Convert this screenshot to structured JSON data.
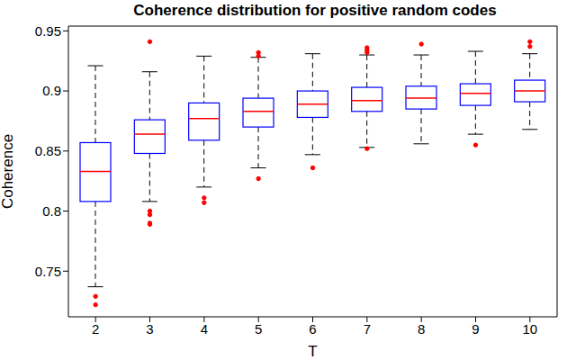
{
  "chart_data": {
    "type": "box",
    "title": "Coherence distribution for positive random codes",
    "x_label": "T",
    "y_label": "Coherence",
    "x": [
      2,
      3,
      4,
      5,
      6,
      7,
      8,
      9,
      10
    ],
    "xlim": [
      1.5,
      10.5
    ],
    "xticks": [
      2,
      3,
      4,
      5,
      6,
      7,
      8,
      9,
      10
    ],
    "ylim": [
      0.712,
      0.954
    ],
    "yticks": [
      0.75,
      0.8,
      0.85,
      0.9,
      0.95
    ],
    "grid": false,
    "color": "#0000ff",
    "whisker_low": [
      0.737,
      0.808,
      0.82,
      0.836,
      0.847,
      0.853,
      0.856,
      0.864,
      0.868
    ],
    "q1": [
      0.808,
      0.848,
      0.859,
      0.87,
      0.878,
      0.883,
      0.885,
      0.888,
      0.891
    ],
    "q3": [
      0.857,
      0.876,
      0.89,
      0.894,
      0.9,
      0.903,
      0.904,
      0.906,
      0.909
    ],
    "whisker_high": [
      0.921,
      0.916,
      0.929,
      0.928,
      0.931,
      0.93,
      0.93,
      0.933,
      0.931
    ],
    "median": {
      "values": [
        0.833,
        0.864,
        0.877,
        0.883,
        0.889,
        0.892,
        0.894,
        0.898,
        0.9
      ],
      "color": "#ff0000"
    },
    "outliers": {
      "values": [
        [
          0.729,
          0.722
        ],
        [
          0.941,
          0.8,
          0.797,
          0.79,
          0.789
        ],
        [
          0.811,
          0.807
        ],
        [
          0.932,
          0.929,
          0.827
        ],
        [
          0.836
        ],
        [
          0.936,
          0.934,
          0.932,
          0.852
        ],
        [
          0.939
        ],
        [
          0.855
        ],
        [
          0.941,
          0.937
        ]
      ],
      "color": "#ff0000",
      "marker": "dot"
    }
  }
}
